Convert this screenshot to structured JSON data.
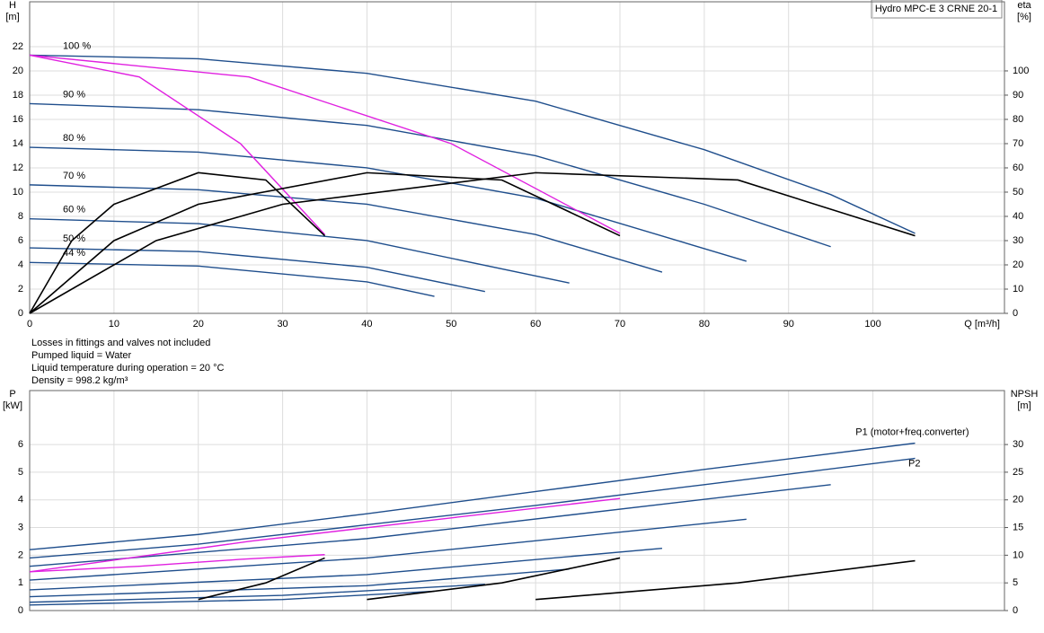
{
  "chart_data": [
    {
      "type": "line",
      "title": "Hydro MPC-E 3 CRNE 20-1",
      "ylabel": "H",
      "yunit": "[m]",
      "y2label": "eta",
      "y2unit": "[%]",
      "xlabel": "Q [m³/h]",
      "xlim": [
        0,
        115.6
      ],
      "xticks": [
        0,
        10,
        20,
        30,
        40,
        50,
        60,
        70,
        80,
        90,
        100
      ],
      "ylim": [
        0,
        25.7
      ],
      "yticks": [
        0,
        2,
        4,
        6,
        8,
        10,
        12,
        14,
        16,
        18,
        20,
        22
      ],
      "y2lim": [
        0,
        128.5
      ],
      "y2ticks": [
        0,
        10,
        20,
        30,
        40,
        50,
        60,
        70,
        80,
        90,
        100
      ],
      "grid": true,
      "series": [
        {
          "name": "100 %",
          "color": "#1f4e8c",
          "x": [
            0,
            20,
            40,
            60,
            80,
            95,
            105
          ],
          "values": [
            21.3,
            21,
            19.8,
            17.5,
            13.5,
            9.8,
            6.6
          ]
        },
        {
          "name": "90 %",
          "color": "#1f4e8c",
          "x": [
            0,
            20,
            40,
            60,
            80,
            95
          ],
          "values": [
            17.3,
            16.8,
            15.5,
            13,
            9,
            5.5
          ]
        },
        {
          "name": "80 %",
          "color": "#1f4e8c",
          "x": [
            0,
            20,
            40,
            60,
            85
          ],
          "values": [
            13.7,
            13.3,
            12,
            9.5,
            4.3
          ]
        },
        {
          "name": "70 %",
          "color": "#1f4e8c",
          "x": [
            0,
            20,
            40,
            60,
            75
          ],
          "values": [
            10.6,
            10.2,
            9,
            6.5,
            3.4
          ]
        },
        {
          "name": "60 %",
          "color": "#1f4e8c",
          "x": [
            0,
            20,
            40,
            64
          ],
          "values": [
            7.8,
            7.4,
            6,
            2.5
          ]
        },
        {
          "name": "50 %",
          "color": "#1f4e8c",
          "x": [
            0,
            20,
            40,
            54
          ],
          "values": [
            5.4,
            5.1,
            3.8,
            1.8
          ]
        },
        {
          "name": "44 %",
          "color": "#1f4e8c",
          "x": [
            0,
            20,
            40,
            48
          ],
          "values": [
            4.2,
            3.9,
            2.6,
            1.4
          ]
        },
        {
          "color": "#e020e0",
          "x": [
            0,
            13,
            25,
            35
          ],
          "values": [
            21.3,
            19.5,
            14,
            6.5
          ]
        },
        {
          "color": "#e020e0",
          "x": [
            0,
            26,
            50,
            70
          ],
          "values": [
            21.3,
            19.5,
            14,
            6.6
          ]
        },
        {
          "color": "#000000",
          "axis": "y2",
          "x": [
            0,
            5,
            10,
            20,
            28,
            35
          ],
          "values": [
            0,
            30,
            45,
            58,
            55,
            32
          ]
        },
        {
          "color": "#000000",
          "axis": "y2",
          "x": [
            0,
            10,
            20,
            40,
            56,
            70
          ],
          "values": [
            0,
            30,
            45,
            58,
            55,
            32
          ]
        },
        {
          "color": "#000000",
          "axis": "y2",
          "x": [
            0,
            15,
            30,
            60,
            84,
            105
          ],
          "values": [
            0,
            30,
            45,
            58,
            55,
            32
          ]
        }
      ]
    },
    {
      "type": "line",
      "ylabel": "P",
      "yunit": "[kW]",
      "y2label": "NPSH",
      "y2unit": "[m]",
      "xlim": [
        0,
        115.6
      ],
      "xticks": [
        0,
        10,
        20,
        30,
        40,
        50,
        60,
        70,
        80,
        90,
        100
      ],
      "ylim": [
        0,
        7.95
      ],
      "yticks": [
        0,
        1,
        2,
        3,
        4,
        5,
        6
      ],
      "y2lim": [
        0,
        39.75
      ],
      "y2ticks": [
        0,
        5,
        10,
        15,
        20,
        25,
        30
      ],
      "grid": true,
      "series": [
        {
          "name": "P1 (motor+freq.converter)",
          "color": "#1f4e8c",
          "x": [
            0,
            20,
            40,
            60,
            80,
            105
          ],
          "values": [
            2.2,
            2.75,
            3.5,
            4.3,
            5.1,
            6.05
          ]
        },
        {
          "name": "P2",
          "color": "#1f4e8c",
          "x": [
            0,
            20,
            40,
            60,
            80,
            105
          ],
          "values": [
            1.9,
            2.4,
            3.1,
            3.8,
            4.55,
            5.5
          ]
        },
        {
          "color": "#1f4e8c",
          "x": [
            0,
            40,
            95
          ],
          "values": [
            1.6,
            2.6,
            4.55
          ]
        },
        {
          "color": "#1f4e8c",
          "x": [
            0,
            40,
            85
          ],
          "values": [
            1.1,
            1.9,
            3.3
          ]
        },
        {
          "color": "#1f4e8c",
          "x": [
            0,
            40,
            75
          ],
          "values": [
            0.75,
            1.3,
            2.25
          ]
        },
        {
          "color": "#1f4e8c",
          "x": [
            0,
            40,
            64
          ],
          "values": [
            0.5,
            0.9,
            1.5
          ]
        },
        {
          "color": "#1f4e8c",
          "x": [
            0,
            30,
            54
          ],
          "values": [
            0.3,
            0.55,
            0.95
          ]
        },
        {
          "color": "#1f4e8c",
          "x": [
            0,
            30,
            48
          ],
          "values": [
            0.2,
            0.4,
            0.7
          ]
        },
        {
          "color": "#e020e0",
          "x": [
            0,
            13,
            25,
            35
          ],
          "values": [
            1.4,
            1.6,
            1.85,
            2.02
          ]
        },
        {
          "color": "#e020e0",
          "x": [
            0,
            26,
            50,
            70
          ],
          "values": [
            1.4,
            2.5,
            3.35,
            4.05
          ]
        },
        {
          "color": "#000000",
          "axis": "y2",
          "x": [
            20,
            28,
            35
          ],
          "values": [
            2,
            5,
            9.5
          ]
        },
        {
          "color": "#000000",
          "axis": "y2",
          "x": [
            40,
            56,
            70
          ],
          "values": [
            2,
            5,
            9.5
          ]
        },
        {
          "color": "#000000",
          "axis": "y2",
          "x": [
            60,
            84,
            105
          ],
          "values": [
            2,
            5,
            9
          ]
        }
      ]
    }
  ],
  "notes": [
    "Losses in fittings and valves not included",
    "Pumped liquid = Water",
    "Liquid temperature during operation = 20 °C",
    "Density = 998.2 kg/m³"
  ]
}
